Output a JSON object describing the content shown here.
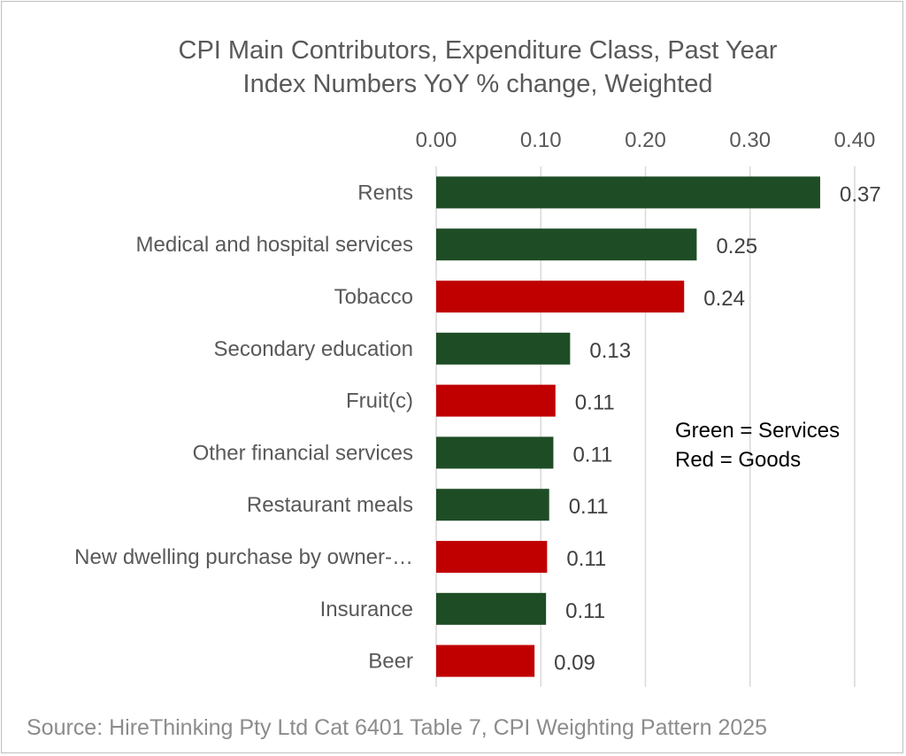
{
  "chart_data": {
    "type": "bar",
    "orientation": "horizontal",
    "title_line1": "CPI Main Contributors, Expenditure Class, Past Year",
    "title_line2": "Index Numbers YoY % change, Weighted",
    "categories": [
      "Rents",
      "Medical and hospital services",
      "Tobacco",
      "Secondary education",
      "Fruit(c)",
      "Other financial services",
      "Restaurant meals",
      "New dwelling purchase by owner-…",
      "Insurance",
      "Beer"
    ],
    "values": [
      0.367,
      0.249,
      0.237,
      0.128,
      0.114,
      0.112,
      0.108,
      0.106,
      0.105,
      0.094
    ],
    "value_labels": [
      "0.37",
      "0.25",
      "0.24",
      "0.13",
      "0.11",
      "0.11",
      "0.11",
      "0.11",
      "0.11",
      "0.09"
    ],
    "kinds": [
      "Services",
      "Services",
      "Goods",
      "Services",
      "Goods",
      "Services",
      "Services",
      "Goods",
      "Services",
      "Goods"
    ],
    "xlim": [
      0,
      0.4
    ],
    "xticks": [
      0,
      0.1,
      0.2,
      0.3,
      0.4
    ],
    "xtick_labels": [
      "0.00",
      "0.10",
      "0.20",
      "0.30",
      "0.40"
    ],
    "xaxis_position": "top",
    "grid": true,
    "colors": {
      "Services": "#1e4d25",
      "Goods": "#c00000"
    },
    "legend_line1": "Green = Services",
    "legend_line2": "Red = Goods",
    "source": "Source: HireThinking Pty Ltd Cat 6401 Table 7, CPI Weighting Pattern 2025"
  }
}
